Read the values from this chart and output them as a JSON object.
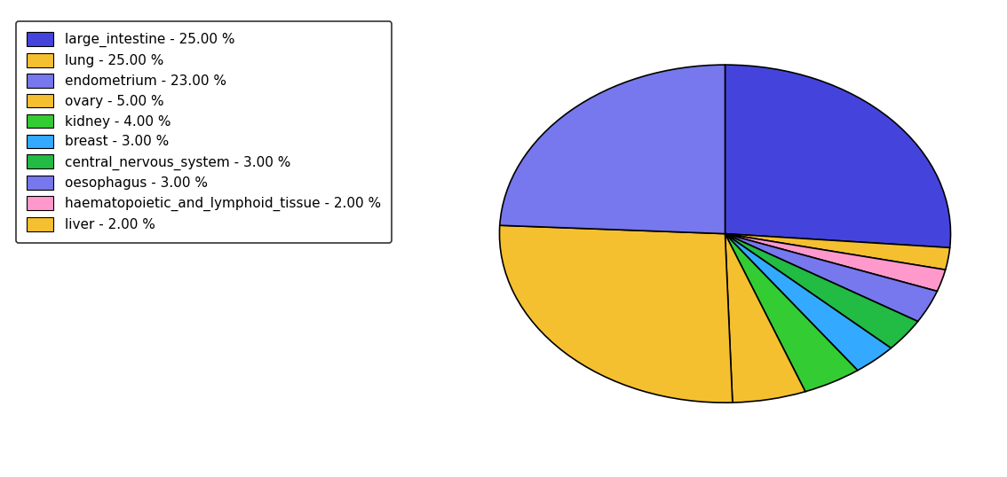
{
  "labels": [
    "large_intestine",
    "lung",
    "endometrium",
    "ovary",
    "kidney",
    "breast",
    "central_nervous_system",
    "oesophagus",
    "haematopoietic_and_lymphoid_tissue",
    "liver"
  ],
  "values": [
    25.0,
    25.0,
    23.0,
    5.0,
    4.0,
    3.0,
    3.0,
    3.0,
    2.0,
    2.0
  ],
  "colors": [
    "#4444dd",
    "#f5c030",
    "#7777ee",
    "#f5c030",
    "#33cc33",
    "#33aaff",
    "#22bb44",
    "#7777ee",
    "#ff99cc",
    "#f5c030"
  ],
  "legend_labels": [
    "large_intestine - 25.00 %",
    "lung - 25.00 %",
    "endometrium - 23.00 %",
    "ovary - 5.00 %",
    "kidney - 4.00 %",
    "breast - 3.00 %",
    "central_nervous_system - 3.00 %",
    "oesophagus - 3.00 %",
    "haematopoietic_and_lymphoid_tissue - 2.00 %",
    "liver - 2.00 %"
  ],
  "figsize": [
    11.34,
    5.38
  ],
  "dpi": 100,
  "startangle": 90,
  "aspect_ratio": 0.75
}
